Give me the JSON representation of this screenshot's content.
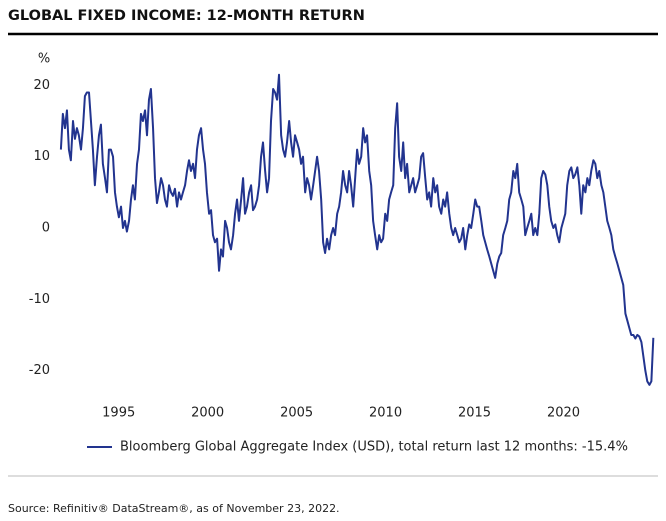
{
  "chart_data": {
    "type": "line",
    "title": "GLOBAL FIXED INCOME: 12-MONTH RETURN",
    "ylabel": "%",
    "source": "Source: Refinitiv® DataStream®, as of November 23, 2022.",
    "xlim": [
      1991.7,
      2025.2
    ],
    "xticks": [
      1995,
      2000,
      2005,
      2010,
      2015,
      2020
    ],
    "ylim": [
      -23,
      23
    ],
    "yticks": [
      -20,
      -10,
      0,
      10,
      20
    ],
    "grid": false,
    "legend": "bottom",
    "x": [
      1991.75,
      1991.86,
      1991.98,
      1992.09,
      1992.2,
      1992.31,
      1992.43,
      1992.54,
      1992.65,
      1992.76,
      1992.88,
      1992.99,
      1993.1,
      1993.21,
      1993.33,
      1993.44,
      1993.55,
      1993.66,
      1993.78,
      1993.89,
      1994,
      1994.11,
      1994.23,
      1994.34,
      1994.45,
      1994.56,
      1994.68,
      1994.79,
      1994.9,
      1995.01,
      1995.13,
      1995.24,
      1995.35,
      1995.46,
      1995.58,
      1995.69,
      1995.8,
      1995.91,
      1996.03,
      1996.14,
      1996.25,
      1996.36,
      1996.48,
      1996.59,
      1996.7,
      1996.81,
      1996.93,
      1997.04,
      1997.15,
      1997.26,
      1997.38,
      1997.49,
      1997.6,
      1997.71,
      1997.83,
      1997.94,
      1998.05,
      1998.16,
      1998.28,
      1998.39,
      1998.5,
      1998.61,
      1998.73,
      1998.84,
      1998.95,
      1999.06,
      1999.18,
      1999.29,
      1999.4,
      1999.51,
      1999.63,
      1999.74,
      1999.85,
      1999.96,
      2000.08,
      2000.19,
      2000.3,
      2000.41,
      2000.53,
      2000.64,
      2000.75,
      2000.86,
      2000.98,
      2001.09,
      2001.2,
      2001.31,
      2001.43,
      2001.54,
      2001.65,
      2001.76,
      2001.88,
      2001.99,
      2002.1,
      2002.21,
      2002.33,
      2002.44,
      2002.55,
      2002.66,
      2002.78,
      2002.89,
      2003,
      2003.11,
      2003.23,
      2003.34,
      2003.45,
      2003.56,
      2003.68,
      2003.79,
      2003.9,
      2004.01,
      2004.13,
      2004.24,
      2004.35,
      2004.46,
      2004.58,
      2004.69,
      2004.8,
      2004.91,
      2005.03,
      2005.14,
      2005.25,
      2005.36,
      2005.48,
      2005.59,
      2005.7,
      2005.81,
      2005.93,
      2006.04,
      2006.15,
      2006.26,
      2006.38,
      2006.49,
      2006.6,
      2006.71,
      2006.83,
      2006.94,
      2007.05,
      2007.16,
      2007.28,
      2007.39,
      2007.5,
      2007.61,
      2007.73,
      2007.84,
      2007.95,
      2008.06,
      2008.18,
      2008.29,
      2008.4,
      2008.51,
      2008.63,
      2008.74,
      2008.85,
      2008.96,
      2009.08,
      2009.19,
      2009.3,
      2009.41,
      2009.53,
      2009.64,
      2009.75,
      2009.86,
      2009.98,
      2010.09,
      2010.2,
      2010.31,
      2010.43,
      2010.54,
      2010.65,
      2010.76,
      2010.88,
      2010.99,
      2011.1,
      2011.21,
      2011.33,
      2011.44,
      2011.55,
      2011.66,
      2011.78,
      2011.89,
      2012,
      2012.11,
      2012.23,
      2012.34,
      2012.45,
      2012.56,
      2012.68,
      2012.79,
      2012.9,
      2013.01,
      2013.13,
      2013.24,
      2013.35,
      2013.46,
      2013.58,
      2013.69,
      2013.8,
      2013.91,
      2014.03,
      2014.14,
      2014.25,
      2014.36,
      2014.48,
      2014.59,
      2014.7,
      2014.81,
      2014.93,
      2015.04,
      2015.15,
      2015.26,
      2015.38,
      2015.49,
      2015.6,
      2015.71,
      2015.83,
      2015.94,
      2016.05,
      2016.16,
      2016.28,
      2016.39,
      2016.5,
      2016.61,
      2016.73,
      2016.84,
      2016.95,
      2017.06,
      2017.18,
      2017.29,
      2017.4,
      2017.51,
      2017.63,
      2017.74,
      2017.85,
      2017.96,
      2018.08,
      2018.19,
      2018.3,
      2018.41,
      2018.53,
      2018.64,
      2018.75,
      2018.86,
      2018.98,
      2019.09,
      2019.2,
      2019.31,
      2019.43,
      2019.54,
      2019.65,
      2019.76,
      2019.88,
      2019.99,
      2020.1,
      2020.21,
      2020.33,
      2020.44,
      2020.55,
      2020.66,
      2020.78,
      2020.89,
      2021,
      2021.11,
      2021.23,
      2021.34,
      2021.45,
      2021.56,
      2021.68,
      2021.79,
      2021.9,
      2022.01,
      2022.13,
      2022.24,
      2022.35,
      2022.46,
      2022.58,
      2022.69,
      2022.8,
      2022.91,
      2023.03,
      2023.14,
      2023.25,
      2023.36,
      2023.48,
      2023.59,
      2023.7,
      2023.81,
      2023.93,
      2024.04,
      2024.15,
      2024.26,
      2024.38,
      2024.49,
      2024.6,
      2024.71,
      2024.83,
      2024.94,
      2025.05
    ],
    "series": [
      {
        "name": "Bloomberg Global Aggregate Index (USD), total return last 12 months: -15.4%",
        "color": "#22348f",
        "values": [
          11,
          16,
          14,
          16.5,
          11,
          9.5,
          15,
          12.5,
          14,
          13,
          11,
          14,
          18.5,
          19,
          19,
          15,
          11,
          6,
          10,
          13,
          14.5,
          9,
          7,
          5,
          11,
          11,
          10,
          5,
          3,
          1.5,
          3,
          0,
          1,
          -0.5,
          1,
          4,
          6,
          4,
          9,
          11,
          16,
          15,
          16.5,
          13,
          18,
          19.5,
          14,
          7,
          3.5,
          5,
          7,
          6,
          4,
          3,
          6,
          5,
          4.5,
          5.5,
          3,
          5,
          4,
          5,
          6,
          8,
          9.5,
          8,
          9,
          7,
          11,
          13,
          14,
          11,
          9,
          5,
          2,
          2.5,
          -1,
          -2,
          -1.5,
          -6,
          -3,
          -4,
          1,
          0,
          -2,
          -3,
          -1,
          2,
          4,
          1,
          4,
          7,
          2,
          3,
          5,
          6,
          2.5,
          3,
          4,
          6,
          10,
          12,
          8,
          5,
          7,
          15,
          19.5,
          19,
          18,
          21.5,
          13,
          11,
          10,
          12,
          15,
          12,
          10,
          13,
          12,
          11,
          9,
          10,
          5,
          7,
          6,
          4,
          6,
          8,
          10,
          8,
          4,
          -2,
          -3.5,
          -1.5,
          -3,
          -1,
          0,
          -1,
          2,
          3,
          5,
          8,
          6,
          5,
          8,
          6,
          3,
          7,
          11,
          9,
          10,
          14,
          12,
          13,
          8,
          6,
          1,
          -1,
          -3,
          -1,
          -2,
          -1.5,
          2,
          1,
          4,
          5,
          6,
          14,
          17.5,
          10,
          8,
          12,
          7,
          9,
          5,
          6,
          7,
          5,
          6,
          7,
          10,
          10.5,
          7,
          4,
          5,
          3,
          7,
          5,
          6,
          3,
          2,
          4,
          3,
          5,
          2,
          0,
          -1,
          0,
          -1,
          -2,
          -1.5,
          0,
          -3,
          -1,
          0.5,
          0,
          2,
          4,
          3,
          3,
          1,
          -1,
          -2,
          -3,
          -4,
          -5,
          -6,
          -7,
          -5,
          -4,
          -3.5,
          -1,
          0,
          1,
          4,
          5,
          8,
          7,
          9,
          5,
          4,
          3,
          -1,
          0,
          1,
          2,
          -1,
          0,
          -1,
          2,
          7,
          8,
          7.5,
          6,
          3,
          1,
          0,
          0.5,
          -1,
          -2,
          0,
          1,
          2,
          6,
          8,
          8.5,
          7,
          7.5,
          8.5,
          6,
          2,
          6,
          5,
          7,
          6,
          8,
          9.5,
          9,
          7,
          8,
          6,
          5,
          3,
          1,
          0,
          -1,
          -3,
          -4,
          -5,
          -6,
          -7,
          -8,
          -12,
          -13,
          -14,
          -15,
          -15,
          -15.5,
          -15,
          -15.2,
          -16,
          -18,
          -20,
          -21.5,
          -22,
          -21.5,
          -15.4
        ]
      }
    ]
  }
}
